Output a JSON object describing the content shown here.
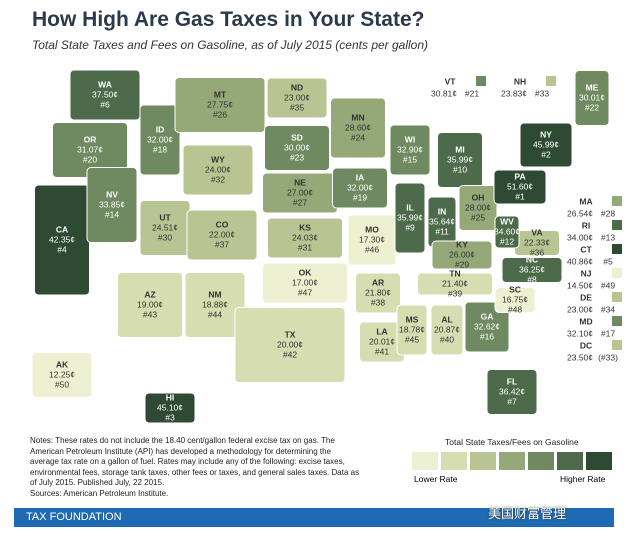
{
  "header": {
    "title": "How High Are Gas Taxes in Your State?",
    "subtitle": "Total State Taxes and Fees on Gasoline, as of July 2015 (cents per gallon)"
  },
  "states": [
    {
      "abbr": "WA",
      "rate": "37.50¢",
      "rank": "#6",
      "color": "#4d6b4a"
    },
    {
      "abbr": "OR",
      "rate": "31.07¢",
      "rank": "#20",
      "color": "#6f8a61"
    },
    {
      "abbr": "CA",
      "rate": "42.35¢",
      "rank": "#4",
      "color": "#2f4a33"
    },
    {
      "abbr": "NV",
      "rate": "33.85¢",
      "rank": "#14",
      "color": "#6f8a61"
    },
    {
      "abbr": "ID",
      "rate": "32.00¢",
      "rank": "#18",
      "color": "#6f8a61"
    },
    {
      "abbr": "MT",
      "rate": "27.75¢",
      "rank": "#26",
      "color": "#94a878"
    },
    {
      "abbr": "WY",
      "rate": "24.00¢",
      "rank": "#32",
      "color": "#b8c592"
    },
    {
      "abbr": "UT",
      "rate": "24.51¢",
      "rank": "#30",
      "color": "#b8c592"
    },
    {
      "abbr": "AZ",
      "rate": "19.00¢",
      "rank": "#43",
      "color": "#d6ddb0"
    },
    {
      "abbr": "CO",
      "rate": "22.00¢",
      "rank": "#37",
      "color": "#b8c592"
    },
    {
      "abbr": "NM",
      "rate": "18.88¢",
      "rank": "#44",
      "color": "#d6ddb0"
    },
    {
      "abbr": "ND",
      "rate": "23.00¢",
      "rank": "#35",
      "color": "#b8c592"
    },
    {
      "abbr": "SD",
      "rate": "30.00¢",
      "rank": "#23",
      "color": "#6f8a61"
    },
    {
      "abbr": "NE",
      "rate": "27.00¢",
      "rank": "#27",
      "color": "#94a878"
    },
    {
      "abbr": "KS",
      "rate": "24.03¢",
      "rank": "#31",
      "color": "#b8c592"
    },
    {
      "abbr": "OK",
      "rate": "17.00¢",
      "rank": "#47",
      "color": "#eef0d2"
    },
    {
      "abbr": "TX",
      "rate": "20.00¢",
      "rank": "#42",
      "color": "#d6ddb0"
    },
    {
      "abbr": "MN",
      "rate": "28.60¢",
      "rank": "#24",
      "color": "#94a878"
    },
    {
      "abbr": "IA",
      "rate": "32.00¢",
      "rank": "#19",
      "color": "#6f8a61"
    },
    {
      "abbr": "MO",
      "rate": "17.30¢",
      "rank": "#46",
      "color": "#eef0d2"
    },
    {
      "abbr": "AR",
      "rate": "21.80¢",
      "rank": "#38",
      "color": "#d6ddb0"
    },
    {
      "abbr": "LA",
      "rate": "20.01¢",
      "rank": "#41",
      "color": "#d6ddb0"
    },
    {
      "abbr": "WI",
      "rate": "32.90¢",
      "rank": "#15",
      "color": "#6f8a61"
    },
    {
      "abbr": "IL",
      "rate": "35.99¢",
      "rank": "#9",
      "color": "#4d6b4a"
    },
    {
      "abbr": "MI",
      "rate": "35.99¢",
      "rank": "#10",
      "color": "#4d6b4a"
    },
    {
      "abbr": "IN",
      "rate": "35.64¢",
      "rank": "#11",
      "color": "#4d6b4a"
    },
    {
      "abbr": "OH",
      "rate": "28.00¢",
      "rank": "#25",
      "color": "#94a878"
    },
    {
      "abbr": "KY",
      "rate": "26.00¢",
      "rank": "#29",
      "color": "#94a878"
    },
    {
      "abbr": "TN",
      "rate": "21.40¢",
      "rank": "#39",
      "color": "#d6ddb0"
    },
    {
      "abbr": "MS",
      "rate": "18.78¢",
      "rank": "#45",
      "color": "#d6ddb0"
    },
    {
      "abbr": "AL",
      "rate": "20.87¢",
      "rank": "#40",
      "color": "#d6ddb0"
    },
    {
      "abbr": "GA",
      "rate": "32.62¢",
      "rank": "#16",
      "color": "#6f8a61"
    },
    {
      "abbr": "FL",
      "rate": "36.42¢",
      "rank": "#7",
      "color": "#4d6b4a"
    },
    {
      "abbr": "SC",
      "rate": "16.75¢",
      "rank": "#48",
      "color": "#eef0d2"
    },
    {
      "abbr": "NC",
      "rate": "36.25¢",
      "rank": "#8",
      "color": "#4d6b4a"
    },
    {
      "abbr": "VA",
      "rate": "22.33¢",
      "rank": "#36",
      "color": "#b8c592"
    },
    {
      "abbr": "WV",
      "rate": "34.60¢",
      "rank": "#12",
      "color": "#4d6b4a"
    },
    {
      "abbr": "PA",
      "rate": "51.60¢",
      "rank": "#1",
      "color": "#2f4a33"
    },
    {
      "abbr": "NY",
      "rate": "45.99¢",
      "rank": "#2",
      "color": "#2f4a33"
    },
    {
      "abbr": "ME",
      "rate": "30.01¢",
      "rank": "#22",
      "color": "#6f8a61"
    },
    {
      "abbr": "VT",
      "rate": "30.81¢",
      "rank": "#21",
      "color": "#6f8a61"
    },
    {
      "abbr": "NH",
      "rate": "23.83¢",
      "rank": "#33",
      "color": "#b8c592"
    },
    {
      "abbr": "MA",
      "rate": "26.54¢",
      "rank": "#28",
      "color": "#94a878"
    },
    {
      "abbr": "RI",
      "rate": "34.00¢",
      "rank": "#13",
      "color": "#4d6b4a"
    },
    {
      "abbr": "CT",
      "rate": "40.86¢",
      "rank": "#5",
      "color": "#2f4a33"
    },
    {
      "abbr": "NJ",
      "rate": "14.50¢",
      "rank": "#49",
      "color": "#eef0d2"
    },
    {
      "abbr": "DE",
      "rate": "23.00¢",
      "rank": "#34",
      "color": "#b8c592"
    },
    {
      "abbr": "MD",
      "rate": "32.10¢",
      "rank": "#17",
      "color": "#6f8a61"
    },
    {
      "abbr": "DC",
      "rate": "23.50¢",
      "rank": "(#33)",
      "color": "#b8c592"
    },
    {
      "abbr": "AK",
      "rate": "12.25¢",
      "rank": "#50",
      "color": "#eef0d2"
    },
    {
      "abbr": "HI",
      "rate": "45.10¢",
      "rank": "#3",
      "color": "#2f4a33"
    }
  ],
  "notes": "Notes: These rates do not include the 18.40 cent/gallon federal excise tax on gas. The American Petroleum Institute (API) has developed a methodology for determining the average tax rate on a gallon of fuel. Rates may include any of the following: excise taxes, environmental fees, storage tank taxes, other fees or taxes, and general sales taxes. Data as of July 2015. Published July, 22 2015.",
  "sources": "Sources: American Petroleum Institute.",
  "legend": {
    "title": "Total State Taxes/Fees on Gasoline",
    "low": "Lower Rate",
    "high": "Higher Rate",
    "colors": [
      "#eef0d2",
      "#d6ddb0",
      "#b8c592",
      "#94a878",
      "#6f8a61",
      "#4d6b4a",
      "#2f4a33"
    ]
  },
  "footer": "TAX FOUNDATION",
  "watermark": "美国财富管理"
}
